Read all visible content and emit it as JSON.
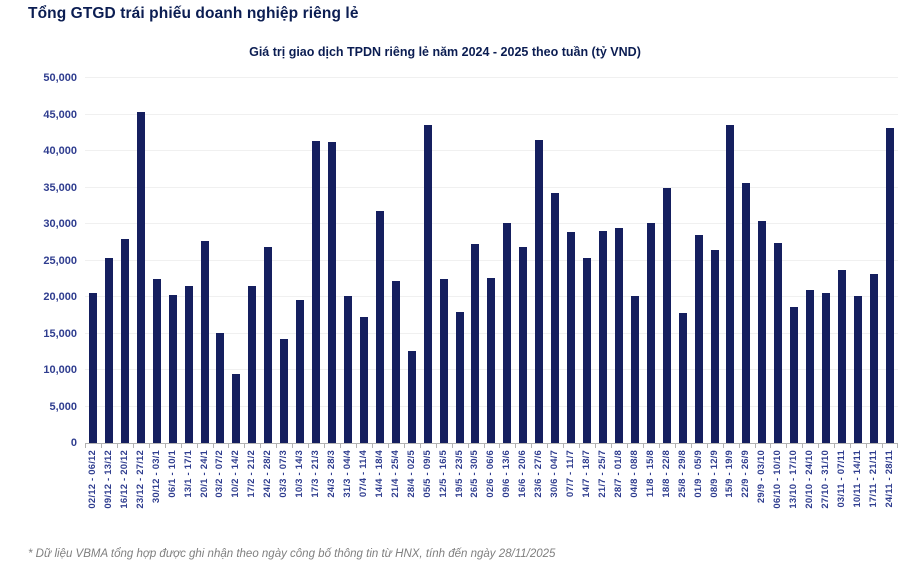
{
  "page": {
    "title": "Tổng GTGD trái phiếu doanh nghiệp riêng lẻ",
    "footnote": "* Dữ liệu VBMA tổng hợp được ghi nhận theo ngày công bố thông tin từ HNX, tính đến ngày 28/11/2025"
  },
  "colors": {
    "bar": "#151f5f",
    "title": "#0b1d52",
    "axis_label": "#2f3d8f",
    "gridline": "#f0f0f0",
    "axis_line": "#b3b3b3",
    "footnote": "#7f7f7f"
  },
  "chart_data": {
    "type": "bar",
    "title": "Giá trị giao dịch TPDN riêng lẻ năm 2024 - 2025 theo tuần (tỷ VND)",
    "xlabel": "",
    "ylabel": "tỷ VND",
    "ylim": [
      0,
      50000
    ],
    "ytick_step": 5000,
    "grid": true,
    "legend": "none",
    "categories": [
      "02/12 - 06/12",
      "09/12 - 13/12",
      "16/12 - 20/12",
      "23/12 - 27/12",
      "30/12 - 03/1",
      "06/1 - 10/1",
      "13/1 - 17/1",
      "20/1 - 24/1",
      "03/2 - 07/2",
      "10/2 - 14/2",
      "17/2 - 21/2",
      "24/2 - 28/2",
      "03/3 - 07/3",
      "10/3 - 14/3",
      "17/3 - 21/3",
      "24/3 - 28/3",
      "31/3 - 04/4",
      "07/4 - 11/4",
      "14/4 - 18/4",
      "21/4 - 25/4",
      "28/4 - 02/5",
      "05/5 - 09/5",
      "12/5 - 16/5",
      "19/5 - 23/5",
      "26/5 - 30/5",
      "02/6 - 06/6",
      "09/6 - 13/6",
      "16/6 - 20/6",
      "23/6 - 27/6",
      "30/6 - 04/7",
      "07/7 - 11/7",
      "14/7 - 18/7",
      "21/7 - 25/7",
      "28/7 - 01/8",
      "04/8 - 08/8",
      "11/8 - 15/8",
      "18/8 - 22/8",
      "25/8 - 29/8",
      "01/9 - 05/9",
      "08/9 - 12/9",
      "15/9 - 19/9",
      "22/9 - 26/9",
      "29/9 - 03/10",
      "06/10 - 10/10",
      "13/10 - 17/10",
      "20/10 - 24/10",
      "27/10 - 31/10",
      "03/11 - 07/11",
      "10/11 - 14/11",
      "17/11 - 21/11",
      "24/11 - 28/11"
    ],
    "values": [
      20600,
      25400,
      28000,
      45400,
      22500,
      20300,
      21500,
      27700,
      15100,
      9500,
      21500,
      26900,
      14200,
      19600,
      41400,
      41300,
      20200,
      17300,
      31800,
      22200,
      12600,
      43500,
      22400,
      17900,
      27200,
      22600,
      30100,
      26900,
      41500,
      34200,
      28900,
      25300,
      29000,
      29400,
      20200,
      30200,
      35000,
      17800,
      28500,
      26400,
      43600,
      35600,
      30400,
      27400,
      18600,
      20900,
      20600,
      23700,
      20200,
      23100,
      43100
    ]
  }
}
